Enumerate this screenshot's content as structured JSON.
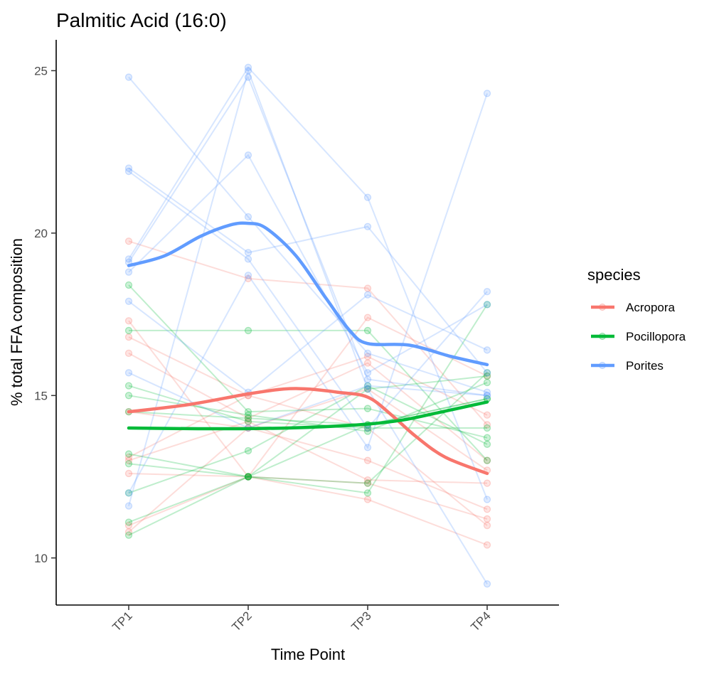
{
  "chart_data": {
    "type": "line",
    "title": "Palmitic Acid (16:0)",
    "xlabel": "Time Point",
    "ylabel": "% total FFA composition",
    "categories": [
      "TP1",
      "TP2",
      "TP3",
      "TP4"
    ],
    "yticks": [
      10,
      15,
      20,
      25
    ],
    "ylim": [
      8.55,
      25.95
    ],
    "grid": false,
    "legend": {
      "title": "species",
      "position": "right",
      "entries": [
        {
          "name": "Acropora",
          "color": "#F8766D"
        },
        {
          "name": "Pocillopora",
          "color": "#00BA38"
        },
        {
          "name": "Porites",
          "color": "#619CFF"
        }
      ]
    },
    "series": [
      {
        "name": "Acropora",
        "color": "#F8766D",
        "smooth": [
          [
            1,
            14.5
          ],
          [
            1.5,
            14.72
          ],
          [
            2,
            15.05
          ],
          [
            2.3,
            15.2
          ],
          [
            2.5,
            15.2
          ],
          [
            2.75,
            15.1
          ],
          [
            3,
            14.95
          ],
          [
            3.2,
            14.4
          ],
          [
            3.4,
            13.75
          ],
          [
            3.65,
            13.1
          ],
          [
            4,
            12.6
          ]
        ],
        "individuals": [
          [
            19.75,
            18.6,
            18.3,
            14.1
          ],
          [
            17.3,
            12.5,
            17.4,
            15.6
          ],
          [
            16.8,
            15.0,
            16.2,
            14.4
          ],
          [
            16.3,
            14.3,
            16.0,
            13.0
          ],
          [
            14.5,
            14.0,
            13.0,
            11.5
          ],
          [
            13.0,
            14.2,
            12.4,
            12.3
          ],
          [
            12.6,
            12.5,
            12.3,
            11.2
          ],
          [
            11.0,
            12.5,
            11.8,
            10.4
          ],
          [
            10.8,
            14.0,
            15.2,
            12.7
          ],
          [
            13.1,
            15.0,
            14.0,
            11.0
          ]
        ]
      },
      {
        "name": "Pocillopora",
        "color": "#00BA38",
        "smooth": [
          [
            1,
            14.0
          ],
          [
            1.5,
            13.98
          ],
          [
            2,
            13.98
          ],
          [
            2.5,
            14.02
          ],
          [
            3,
            14.12
          ],
          [
            3.3,
            14.25
          ],
          [
            3.6,
            14.48
          ],
          [
            4,
            14.8
          ]
        ],
        "individuals": [
          [
            18.4,
            14.5,
            14.6,
            13.7
          ],
          [
            17.0,
            17.0,
            17.0,
            13.0
          ],
          [
            15.3,
            14.2,
            14.0,
            14.0
          ],
          [
            15.0,
            14.4,
            13.9,
            15.4
          ],
          [
            14.5,
            14.3,
            14.1,
            14.9
          ],
          [
            13.2,
            12.5,
            12.0,
            17.8
          ],
          [
            12.9,
            12.5,
            12.3,
            15.7
          ],
          [
            12.0,
            13.3,
            15.3,
            13.5
          ],
          [
            11.1,
            12.5,
            15.2,
            15.6
          ],
          [
            10.7,
            12.5,
            14.1,
            14.9
          ]
        ]
      },
      {
        "name": "Porites",
        "color": "#619CFF",
        "smooth": [
          [
            1,
            19.0
          ],
          [
            1.3,
            19.3
          ],
          [
            1.6,
            19.9
          ],
          [
            1.85,
            20.25
          ],
          [
            2,
            20.3
          ],
          [
            2.15,
            20.15
          ],
          [
            2.4,
            19.3
          ],
          [
            2.65,
            18.0
          ],
          [
            2.85,
            17.0
          ],
          [
            3,
            16.6
          ],
          [
            3.35,
            16.55
          ],
          [
            3.7,
            16.2
          ],
          [
            4,
            15.95
          ]
        ],
        "individuals": [
          [
            24.8,
            20.5,
            16.3,
            15.1
          ],
          [
            22.0,
            19.4,
            20.2,
            15.7
          ],
          [
            21.9,
            19.2,
            14.0,
            18.2
          ],
          [
            19.2,
            25.1,
            21.1,
            11.8
          ],
          [
            19.1,
            24.8,
            15.5,
            15.0
          ],
          [
            18.8,
            22.4,
            15.7,
            17.8
          ],
          [
            17.9,
            15.1,
            18.1,
            16.4
          ],
          [
            15.7,
            14.0,
            15.3,
            15.0
          ],
          [
            12.0,
            18.7,
            13.4,
            24.3
          ],
          [
            11.6,
            25.0,
            15.2,
            9.2
          ]
        ]
      }
    ]
  }
}
